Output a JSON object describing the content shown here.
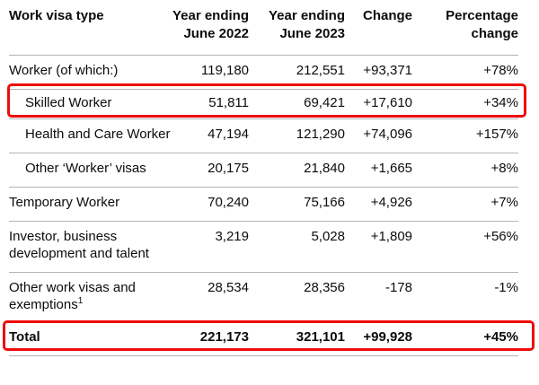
{
  "chart_data": {
    "type": "table",
    "title": "",
    "columns": [
      "Work visa type",
      "Year ending June 2022",
      "Year ending June 2023",
      "Change",
      "Percentage change"
    ],
    "rows": [
      {
        "label": "Worker (of which:)",
        "subcategory": false,
        "y2022": "119,180",
        "y2023": "212,551",
        "change": "+93,371",
        "pct": "+78%",
        "highlighted": false
      },
      {
        "label": "Skilled Worker",
        "subcategory": true,
        "y2022": "51,811",
        "y2023": "69,421",
        "change": "+17,610",
        "pct": "+34%",
        "highlighted": true
      },
      {
        "label": "Health and Care Worker",
        "subcategory": true,
        "y2022": "47,194",
        "y2023": "121,290",
        "change": "+74,096",
        "pct": "+157%",
        "highlighted": false
      },
      {
        "label": "Other ‘Worker’ visas",
        "subcategory": true,
        "y2022": "20,175",
        "y2023": "21,840",
        "change": "+1,665",
        "pct": "+8%",
        "highlighted": false
      },
      {
        "label": "Temporary Worker",
        "subcategory": false,
        "y2022": "70,240",
        "y2023": "75,166",
        "change": "+4,926",
        "pct": "+7%",
        "highlighted": false
      },
      {
        "label": "Investor, business development and talent",
        "subcategory": false,
        "y2022": "3,219",
        "y2023": "5,028",
        "change": "+1,809",
        "pct": "+56%",
        "highlighted": false
      },
      {
        "label": "Other work visas and exemptions",
        "footnote_marker": "1",
        "subcategory": false,
        "y2022": "28,534",
        "y2023": "28,356",
        "change": "-178",
        "pct": "-1%",
        "highlighted": false
      },
      {
        "label": "Total",
        "subcategory": false,
        "bold": true,
        "y2022": "221,173",
        "y2023": "321,101",
        "change": "+99,928",
        "pct": "+45%",
        "highlighted": true
      }
    ],
    "highlighted_rows": [
      "Skilled Worker",
      "Total"
    ],
    "colors": {
      "highlight_box": "#ee0b0b",
      "row_border": "#b1b4b6",
      "text": "#0b0c0c"
    }
  }
}
